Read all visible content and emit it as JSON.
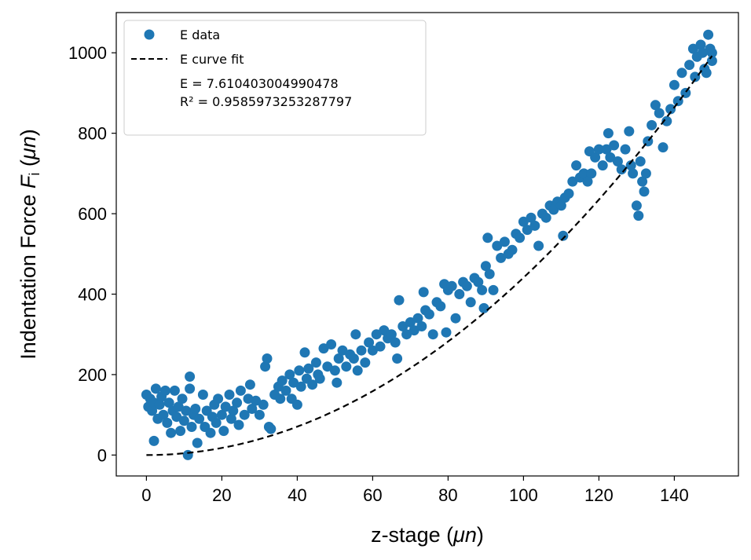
{
  "chart_data": {
    "type": "scatter",
    "title": "",
    "xlabel": "z-stage (μn)",
    "ylabel": "Indentation Force Fᵢ (μn)",
    "xlabel_parts": {
      "prefix": "z-stage (",
      "var": "μn",
      "suffix": ")"
    },
    "ylabel_parts": {
      "prefix": "Indentation Force ",
      "var": "F",
      "sub": "i",
      "mid": " (",
      "unit": "μn",
      "suffix": ")"
    },
    "xlim": [
      -8,
      157
    ],
    "ylim": [
      -52,
      1100
    ],
    "xticks": [
      0,
      20,
      40,
      60,
      80,
      100,
      120,
      140
    ],
    "yticks": [
      0,
      200,
      400,
      600,
      800,
      1000
    ],
    "grid": false,
    "legend_position": "top-left",
    "series": [
      {
        "name": "E data",
        "kind": "scatter",
        "color": "#1f77b4",
        "points": [
          [
            0,
            150
          ],
          [
            0.5,
            120
          ],
          [
            1,
            140
          ],
          [
            1.5,
            110
          ],
          [
            2,
            130
          ],
          [
            2,
            35
          ],
          [
            2.5,
            165
          ],
          [
            3,
            90
          ],
          [
            3.5,
            125
          ],
          [
            4,
            145
          ],
          [
            4.5,
            100
          ],
          [
            5,
            160
          ],
          [
            5.5,
            80
          ],
          [
            6,
            130
          ],
          [
            6.5,
            55
          ],
          [
            7,
            110
          ],
          [
            7.5,
            160
          ],
          [
            8,
            95
          ],
          [
            8.5,
            120
          ],
          [
            9,
            60
          ],
          [
            9.5,
            140
          ],
          [
            10,
            85
          ],
          [
            10.5,
            110
          ],
          [
            11,
            0
          ],
          [
            11.5,
            195
          ],
          [
            11.5,
            165
          ],
          [
            12,
            70
          ],
          [
            12.5,
            100
          ],
          [
            13,
            115
          ],
          [
            13.5,
            30
          ],
          [
            14,
            90
          ],
          [
            15,
            150
          ],
          [
            15.5,
            70
          ],
          [
            16,
            110
          ],
          [
            17,
            55
          ],
          [
            17.5,
            95
          ],
          [
            18,
            125
          ],
          [
            18.5,
            80
          ],
          [
            19,
            140
          ],
          [
            20,
            100
          ],
          [
            20.5,
            60
          ],
          [
            21,
            120
          ],
          [
            22,
            150
          ],
          [
            22.5,
            90
          ],
          [
            23,
            110
          ],
          [
            24,
            130
          ],
          [
            24.5,
            75
          ],
          [
            25,
            160
          ],
          [
            26,
            100
          ],
          [
            27,
            140
          ],
          [
            27.5,
            175
          ],
          [
            28,
            115
          ],
          [
            29,
            135
          ],
          [
            30,
            100
          ],
          [
            31,
            125
          ],
          [
            31.5,
            220
          ],
          [
            32,
            240
          ],
          [
            32.5,
            70
          ],
          [
            33,
            65
          ],
          [
            34,
            150
          ],
          [
            35,
            170
          ],
          [
            35.5,
            140
          ],
          [
            36,
            185
          ],
          [
            37,
            160
          ],
          [
            38,
            200
          ],
          [
            38.5,
            140
          ],
          [
            39,
            180
          ],
          [
            40,
            125
          ],
          [
            40.5,
            210
          ],
          [
            41,
            170
          ],
          [
            42,
            255
          ],
          [
            42.5,
            190
          ],
          [
            43,
            215
          ],
          [
            44,
            175
          ],
          [
            45,
            230
          ],
          [
            45.5,
            200
          ],
          [
            46,
            190
          ],
          [
            47,
            265
          ],
          [
            48,
            220
          ],
          [
            49,
            275
          ],
          [
            50,
            210
          ],
          [
            50.5,
            180
          ],
          [
            51,
            240
          ],
          [
            52,
            260
          ],
          [
            53,
            220
          ],
          [
            54,
            250
          ],
          [
            55,
            240
          ],
          [
            55.5,
            300
          ],
          [
            56,
            210
          ],
          [
            57,
            260
          ],
          [
            58,
            230
          ],
          [
            59,
            280
          ],
          [
            60,
            260
          ],
          [
            61,
            300
          ],
          [
            62,
            270
          ],
          [
            63,
            310
          ],
          [
            64,
            290
          ],
          [
            65,
            300
          ],
          [
            66,
            280
          ],
          [
            66.5,
            240
          ],
          [
            67,
            385
          ],
          [
            68,
            320
          ],
          [
            69,
            300
          ],
          [
            70,
            330
          ],
          [
            71,
            310
          ],
          [
            72,
            340
          ],
          [
            73,
            320
          ],
          [
            73.5,
            405
          ],
          [
            74,
            360
          ],
          [
            75,
            350
          ],
          [
            76,
            300
          ],
          [
            77,
            380
          ],
          [
            78,
            370
          ],
          [
            79,
            425
          ],
          [
            79.5,
            305
          ],
          [
            80,
            410
          ],
          [
            81,
            420
          ],
          [
            82,
            340
          ],
          [
            83,
            400
          ],
          [
            84,
            430
          ],
          [
            85,
            420
          ],
          [
            86,
            380
          ],
          [
            87,
            440
          ],
          [
            88,
            430
          ],
          [
            89,
            410
          ],
          [
            89.5,
            365
          ],
          [
            90,
            470
          ],
          [
            90.5,
            540
          ],
          [
            91,
            450
          ],
          [
            92,
            410
          ],
          [
            93,
            520
          ],
          [
            94,
            490
          ],
          [
            95,
            530
          ],
          [
            96,
            500
          ],
          [
            97,
            510
          ],
          [
            98,
            550
          ],
          [
            99,
            540
          ],
          [
            100,
            580
          ],
          [
            101,
            560
          ],
          [
            102,
            590
          ],
          [
            103,
            570
          ],
          [
            104,
            520
          ],
          [
            105,
            600
          ],
          [
            106,
            590
          ],
          [
            107,
            620
          ],
          [
            108,
            610
          ],
          [
            109,
            630
          ],
          [
            110,
            620
          ],
          [
            110.5,
            545
          ],
          [
            111,
            640
          ],
          [
            112,
            650
          ],
          [
            113,
            680
          ],
          [
            114,
            720
          ],
          [
            115,
            690
          ],
          [
            116,
            700
          ],
          [
            117,
            680
          ],
          [
            117.5,
            755
          ],
          [
            118,
            700
          ],
          [
            119,
            740
          ],
          [
            120,
            760
          ],
          [
            121,
            720
          ],
          [
            122,
            760
          ],
          [
            122.5,
            800
          ],
          [
            123,
            740
          ],
          [
            124,
            770
          ],
          [
            125,
            730
          ],
          [
            126,
            710
          ],
          [
            127,
            760
          ],
          [
            128,
            805
          ],
          [
            128.5,
            720
          ],
          [
            129,
            700
          ],
          [
            130,
            620
          ],
          [
            130.5,
            595
          ],
          [
            131,
            730
          ],
          [
            131.5,
            680
          ],
          [
            132,
            655
          ],
          [
            132.5,
            700
          ],
          [
            133,
            780
          ],
          [
            134,
            820
          ],
          [
            135,
            870
          ],
          [
            136,
            850
          ],
          [
            137,
            765
          ],
          [
            138,
            830
          ],
          [
            139,
            860
          ],
          [
            140,
            920
          ],
          [
            141,
            880
          ],
          [
            142,
            950
          ],
          [
            143,
            900
          ],
          [
            144,
            970
          ],
          [
            145,
            1010
          ],
          [
            145.5,
            940
          ],
          [
            146,
            990
          ],
          [
            147,
            1020
          ],
          [
            148,
            960
          ],
          [
            148.5,
            950
          ],
          [
            149,
            1045
          ],
          [
            149.5,
            1010
          ],
          [
            150,
            1000
          ],
          [
            150,
            980
          ],
          [
            147.5,
            1000
          ]
        ]
      },
      {
        "name": "E curve fit",
        "kind": "line",
        "color": "#000000",
        "style": "dashed",
        "function": "F = 0.0441 * z^2",
        "x_range": [
          0,
          150
        ]
      }
    ],
    "annotations": {
      "e_value": "E = 7.610403004990478",
      "r_squared": "R² = 0.9585973253287797"
    }
  }
}
